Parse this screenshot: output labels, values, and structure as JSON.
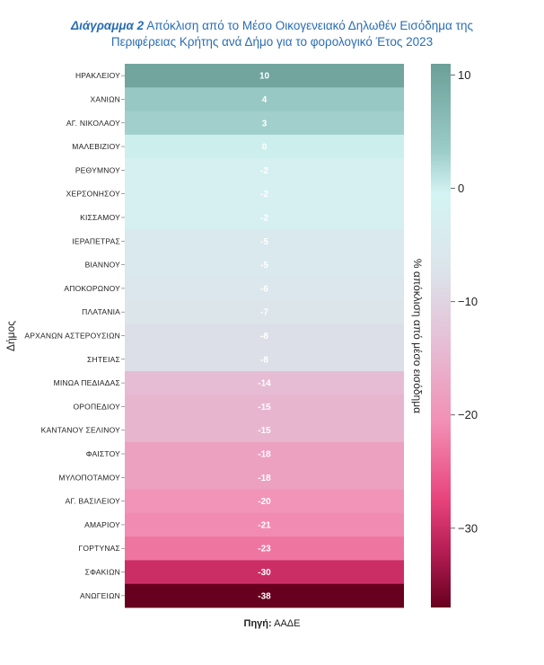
{
  "title": {
    "prefix": "Διάγραμμα  2",
    "text_line1": "Απόκλιση από το Μέσο Οικογενειακό Δηλωθέν Εισόδημα της",
    "text_line2": "Περιφέρειας Κρήτης ανά Δήμο για το φορολογικό Έτος 2023"
  },
  "source": {
    "label": "Πηγή:",
    "value": "ΑΑΔΕ"
  },
  "chart_data": {
    "type": "heatmap",
    "ylabel": "Δήμος",
    "colorbar_label": "% απόκλιση από μέσο εισόδημα",
    "colorbar_range": [
      -37,
      11
    ],
    "colorbar_ticks": [
      10,
      0,
      -10,
      -20,
      -30
    ],
    "colormap": {
      "high": "#6b9f98",
      "mid": "#d4f4f4",
      "low": "#67001f"
    },
    "categories": [
      "ΗΡΑΚΛΕΙΟΥ",
      "ΧΑΝΙΩΝ",
      "ΑΓ. ΝΙΚΟΛΑΟΥ",
      "ΜΑΛΕΒΙΖΙΟΥ",
      "ΡΕΘΥΜΝΟΥ",
      "ΧΕΡΣΟΝΗΣΟΥ",
      "ΚΙΣΣΑΜΟΥ",
      "ΙΕΡΑΠΕΤΡΑΣ",
      "ΒΙΑΝΝΟΥ",
      "ΑΠΟΚΟΡΩΝΟΥ",
      "ΠΛΑΤΑΝΙΑ",
      "ΑΡΧΑΝΩΝ ΑΣΤΕΡΟΥΣΙΩΝ",
      "ΣΗΤΕΙΑΣ",
      "ΜΙΝΩΑ ΠΕΔΙΑΔΑΣ",
      "ΟΡΟΠΕΔΙΟΥ",
      "ΚΑΝΤΑΝΟΥ ΣΕΛΙΝΟΥ",
      "ΦΑΙΣΤΟΥ",
      "ΜΥΛΟΠΟΤΑΜΟΥ",
      "ΑΓ. ΒΑΣΙΛΕΙΟΥ",
      "ΑΜΑΡΙΟΥ",
      "ΓΟΡΤΥΝΑΣ",
      "ΣΦΑΚΙΩΝ",
      "ΑΝΩΓΕΙΩΝ"
    ],
    "values": [
      10,
      4,
      3,
      0,
      -2,
      -2,
      -2,
      -5,
      -5,
      -6,
      -7,
      -8,
      -8,
      -14,
      -15,
      -15,
      -18,
      -18,
      -20,
      -21,
      -23,
      -30,
      -38
    ]
  }
}
